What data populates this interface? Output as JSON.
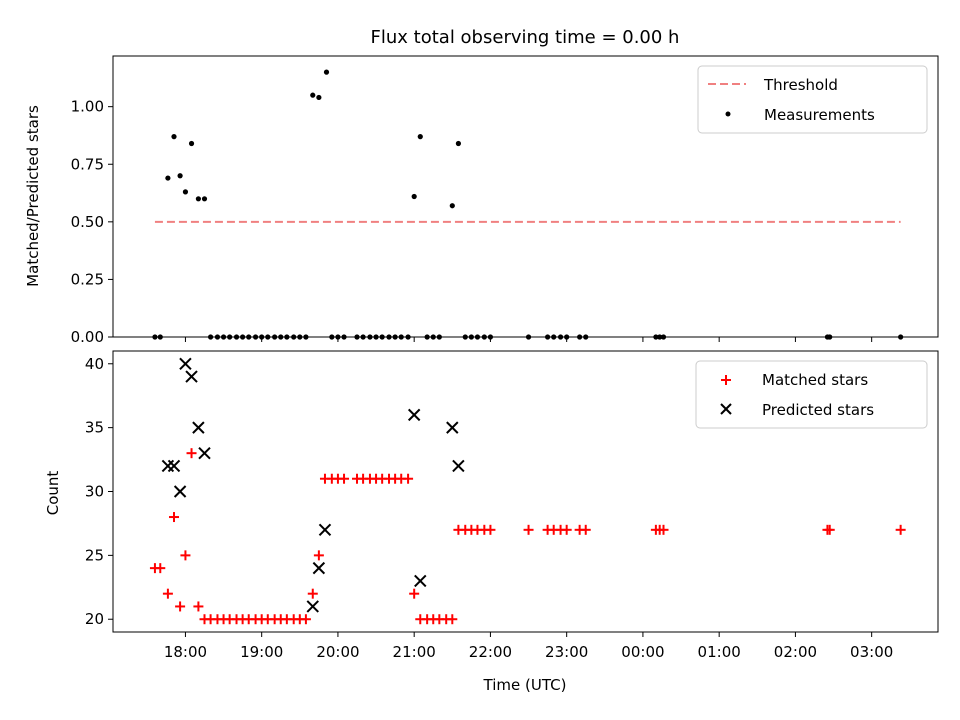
{
  "chart_data": [
    {
      "type": "scatter",
      "title": "Flux total observing time = 0.00 h",
      "xlabel": "",
      "ylabel": "Matched/Predicted stars",
      "xlim_hours": [
        17.05,
        27.87
      ],
      "ylim": [
        0.0,
        1.22
      ],
      "yticks": [
        0.0,
        0.25,
        0.5,
        0.75,
        1.0
      ],
      "ytick_labels": [
        "0.00",
        "0.25",
        "0.50",
        "0.75",
        "1.00"
      ],
      "threshold": {
        "name": "Threshold",
        "value": 0.5,
        "x_start": 17.6,
        "x_end": 27.38,
        "color": "#f08080"
      },
      "legend": {
        "position": "top-right",
        "entries": [
          "Threshold",
          "Measurements"
        ]
      },
      "series": [
        {
          "name": "Measurements",
          "color": "#000000",
          "points": [
            [
              17.6,
              0
            ],
            [
              17.67,
              0
            ],
            [
              17.77,
              0.69
            ],
            [
              17.85,
              0.87
            ],
            [
              17.93,
              0.7
            ],
            [
              18.0,
              0.63
            ],
            [
              18.08,
              0.84
            ],
            [
              18.17,
              0.6
            ],
            [
              18.25,
              0.6
            ],
            [
              18.33,
              0
            ],
            [
              18.42,
              0
            ],
            [
              18.5,
              0
            ],
            [
              18.58,
              0
            ],
            [
              18.67,
              0
            ],
            [
              18.75,
              0
            ],
            [
              18.83,
              0
            ],
            [
              18.92,
              0
            ],
            [
              19.0,
              0
            ],
            [
              19.08,
              0
            ],
            [
              19.17,
              0
            ],
            [
              19.25,
              0
            ],
            [
              19.33,
              0
            ],
            [
              19.42,
              0
            ],
            [
              19.5,
              0
            ],
            [
              19.58,
              0
            ],
            [
              19.67,
              1.05
            ],
            [
              19.75,
              1.04
            ],
            [
              19.85,
              1.15
            ],
            [
              19.92,
              0
            ],
            [
              20.0,
              0
            ],
            [
              20.08,
              0
            ],
            [
              20.25,
              0
            ],
            [
              20.33,
              0
            ],
            [
              20.42,
              0
            ],
            [
              20.5,
              0
            ],
            [
              20.58,
              0
            ],
            [
              20.67,
              0
            ],
            [
              20.75,
              0
            ],
            [
              20.83,
              0
            ],
            [
              20.92,
              0
            ],
            [
              21.0,
              0.61
            ],
            [
              21.08,
              0.87
            ],
            [
              21.17,
              0
            ],
            [
              21.25,
              0
            ],
            [
              21.33,
              0
            ],
            [
              21.5,
              0.57
            ],
            [
              21.58,
              0.84
            ],
            [
              21.67,
              0
            ],
            [
              21.75,
              0
            ],
            [
              21.83,
              0
            ],
            [
              21.92,
              0
            ],
            [
              22.0,
              0
            ],
            [
              22.5,
              0
            ],
            [
              22.75,
              0
            ],
            [
              22.83,
              0
            ],
            [
              22.92,
              0
            ],
            [
              23.0,
              0
            ],
            [
              23.17,
              0
            ],
            [
              23.25,
              0
            ],
            [
              24.17,
              0
            ],
            [
              24.22,
              0
            ],
            [
              24.27,
              0
            ],
            [
              26.42,
              0
            ],
            [
              26.45,
              0
            ],
            [
              27.38,
              0
            ]
          ]
        }
      ]
    },
    {
      "type": "scatter",
      "title": "",
      "xlabel": "Time (UTC)",
      "ylabel": "Count",
      "xlim_hours": [
        17.05,
        27.87
      ],
      "ylim": [
        19.0,
        41.0
      ],
      "yticks": [
        20,
        25,
        30,
        35,
        40
      ],
      "ytick_labels": [
        "20",
        "25",
        "30",
        "35",
        "40"
      ],
      "xticks_hours": [
        18,
        19,
        20,
        21,
        22,
        23,
        24,
        25,
        26,
        27
      ],
      "xtick_labels": [
        "18:00",
        "19:00",
        "20:00",
        "21:00",
        "22:00",
        "23:00",
        "00:00",
        "01:00",
        "02:00",
        "03:00"
      ],
      "legend": {
        "position": "top-right",
        "entries": [
          "Matched stars",
          "Predicted stars"
        ]
      },
      "series": [
        {
          "name": "Matched stars",
          "marker": "plus",
          "color": "#ff0000",
          "points": [
            [
              17.6,
              24
            ],
            [
              17.67,
              24
            ],
            [
              17.77,
              22
            ],
            [
              17.85,
              28
            ],
            [
              17.93,
              21
            ],
            [
              18.0,
              25
            ],
            [
              18.08,
              33
            ],
            [
              18.17,
              21
            ],
            [
              18.25,
              20
            ],
            [
              18.33,
              20
            ],
            [
              18.42,
              20
            ],
            [
              18.5,
              20
            ],
            [
              18.58,
              20
            ],
            [
              18.67,
              20
            ],
            [
              18.75,
              20
            ],
            [
              18.83,
              20
            ],
            [
              18.92,
              20
            ],
            [
              19.0,
              20
            ],
            [
              19.08,
              20
            ],
            [
              19.17,
              20
            ],
            [
              19.25,
              20
            ],
            [
              19.33,
              20
            ],
            [
              19.42,
              20
            ],
            [
              19.5,
              20
            ],
            [
              19.58,
              20
            ],
            [
              19.67,
              22
            ],
            [
              19.75,
              25
            ],
            [
              19.83,
              31
            ],
            [
              19.92,
              31
            ],
            [
              20.0,
              31
            ],
            [
              20.08,
              31
            ],
            [
              20.25,
              31
            ],
            [
              20.33,
              31
            ],
            [
              20.42,
              31
            ],
            [
              20.5,
              31
            ],
            [
              20.58,
              31
            ],
            [
              20.67,
              31
            ],
            [
              20.75,
              31
            ],
            [
              20.83,
              31
            ],
            [
              20.92,
              31
            ],
            [
              21.0,
              22
            ],
            [
              21.08,
              20
            ],
            [
              21.17,
              20
            ],
            [
              21.25,
              20
            ],
            [
              21.33,
              20
            ],
            [
              21.42,
              20
            ],
            [
              21.5,
              20
            ],
            [
              21.58,
              27
            ],
            [
              21.67,
              27
            ],
            [
              21.75,
              27
            ],
            [
              21.83,
              27
            ],
            [
              21.92,
              27
            ],
            [
              22.0,
              27
            ],
            [
              22.5,
              27
            ],
            [
              22.75,
              27
            ],
            [
              22.83,
              27
            ],
            [
              22.92,
              27
            ],
            [
              23.0,
              27
            ],
            [
              23.17,
              27
            ],
            [
              23.25,
              27
            ],
            [
              24.17,
              27
            ],
            [
              24.22,
              27
            ],
            [
              24.27,
              27
            ],
            [
              26.42,
              27
            ],
            [
              26.45,
              27
            ],
            [
              27.38,
              27
            ]
          ]
        },
        {
          "name": "Predicted stars",
          "marker": "x",
          "color": "#000000",
          "points": [
            [
              17.77,
              32
            ],
            [
              17.85,
              32
            ],
            [
              17.93,
              30
            ],
            [
              18.0,
              40
            ],
            [
              18.08,
              39
            ],
            [
              18.17,
              35
            ],
            [
              18.25,
              33
            ],
            [
              19.67,
              21
            ],
            [
              19.75,
              24
            ],
            [
              19.83,
              27
            ],
            [
              21.0,
              36
            ],
            [
              21.08,
              23
            ],
            [
              21.5,
              35
            ],
            [
              21.58,
              32
            ]
          ]
        }
      ]
    }
  ]
}
